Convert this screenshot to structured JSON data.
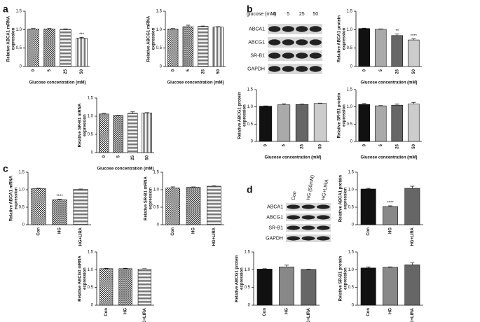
{
  "panels": [
    "a",
    "b",
    "c",
    "d"
  ],
  "blots": [
    {
      "header": "glucose (mM)",
      "lanes": [
        "0",
        "5",
        "25",
        "50"
      ],
      "rows": [
        "ABCA1",
        "ABCG1",
        "SR-B1",
        "GAPDH"
      ]
    },
    {
      "lanes": [
        "Con",
        "HG (50mM)",
        "HG+LIRA"
      ],
      "rows": [
        "ABCA1",
        "ABCG1",
        "SR-B1",
        "GAPDH"
      ]
    }
  ],
  "chart_data": [
    {
      "type": "bar",
      "ylabel": [
        "Relative ABCA1 mRNA",
        "expression"
      ],
      "xlabel": "Glucose concentration (mM)",
      "categories": [
        "0",
        "5",
        "25",
        "50"
      ],
      "values": [
        1.02,
        1.02,
        1.01,
        0.77
      ],
      "errors": [
        0.01,
        0.01,
        0.01,
        0.02
      ],
      "patterns": [
        "check",
        "cross",
        "hlines",
        "vlines"
      ],
      "ylim": [
        0,
        1.5
      ],
      "yticks": [
        0,
        0.5,
        {
          "value": 1,
          "label": "1.0"
        },
        1.5
      ],
      "annotations": [
        {
          "index": 3,
          "text": "***"
        }
      ]
    },
    {
      "type": "bar",
      "ylabel": [
        "Relative ABCG1 mRNA",
        "expression"
      ],
      "xlabel": "Glucose concentration (mM)",
      "categories": [
        "0",
        "5",
        "25",
        "50"
      ],
      "values": [
        1.02,
        1.08,
        1.09,
        1.07
      ],
      "errors": [
        0.01,
        0.04,
        0.01,
        0.01
      ],
      "patterns": [
        "check",
        "cross",
        "hlines",
        "vlines"
      ],
      "ylim": [
        0,
        1.5
      ],
      "yticks": [
        0,
        0.5,
        {
          "value": 1,
          "label": "1.0"
        },
        1.5
      ]
    },
    {
      "type": "bar",
      "ylabel": [
        "Relative SR-B1 mRNA",
        "expression"
      ],
      "xlabel": "Glucose concentration (mM)",
      "categories": [
        "0",
        "5",
        "25",
        "50"
      ],
      "values": [
        1.06,
        1.02,
        1.08,
        1.09
      ],
      "errors": [
        0.02,
        0.01,
        0.04,
        0.01
      ],
      "patterns": [
        "check",
        "cross",
        "hlines",
        "vlines"
      ],
      "ylim": [
        0,
        1.5
      ],
      "yticks": [
        0,
        0.5,
        {
          "value": 1,
          "label": "1.0"
        },
        1.5
      ]
    },
    {
      "type": "bar",
      "ylabel": [
        "Relative ABCA1 protein",
        "expression"
      ],
      "xlabel": "Glucose concentration (mM)",
      "categories": [
        "0",
        "5",
        "25",
        "50"
      ],
      "values": [
        1.03,
        1.01,
        0.84,
        0.72
      ],
      "errors": [
        0.01,
        0.01,
        0.04,
        0.03
      ],
      "colors": [
        "#111111",
        "#aaaaaa",
        "#666666",
        "#cccccc"
      ],
      "ylim": [
        0,
        1.5
      ],
      "yticks": [
        0,
        0.5,
        {
          "value": 1,
          "label": "1.0"
        },
        1.5
      ],
      "annotations": [
        {
          "index": 2,
          "text": "**"
        },
        {
          "index": 3,
          "text": "****"
        }
      ]
    },
    {
      "type": "bar",
      "ylabel": [
        "Relative ABCG1 protein",
        "expression"
      ],
      "xlabel": "Glucose concentration (mM)",
      "categories": [
        "0",
        "5",
        "25",
        "50"
      ],
      "values": [
        1.02,
        1.06,
        1.07,
        1.1
      ],
      "errors": [
        0.01,
        0.03,
        0.01,
        0.01
      ],
      "colors": [
        "#111111",
        "#aaaaaa",
        "#666666",
        "#cccccc"
      ],
      "ylim": [
        0,
        1.5
      ],
      "yticks": [
        0,
        0.5,
        {
          "value": 1,
          "label": "1.0"
        },
        1.5
      ]
    },
    {
      "type": "bar",
      "ylabel": [
        "Relative SR-B1 protein",
        "expression"
      ],
      "xlabel": "Glucose concentration (mM)",
      "categories": [
        "0",
        "5",
        "25",
        "50"
      ],
      "values": [
        1.07,
        1.03,
        1.05,
        1.08
      ],
      "errors": [
        0.03,
        0.01,
        0.03,
        0.05
      ],
      "colors": [
        "#111111",
        "#aaaaaa",
        "#666666",
        "#cccccc"
      ],
      "ylim": [
        0,
        1.5
      ],
      "yticks": [
        0,
        0.5,
        {
          "value": 1,
          "label": "1.0"
        },
        1.5
      ]
    },
    {
      "type": "bar",
      "ylabel": [
        "Relative ABCA1 mRNA",
        "expression"
      ],
      "categories": [
        "Con",
        "HG",
        "HG+LIRA"
      ],
      "values": [
        1.03,
        0.71,
        1.01
      ],
      "errors": [
        0.01,
        0.02,
        0.01
      ],
      "patterns": [
        "check",
        "cross",
        "hlines"
      ],
      "ylim": [
        0,
        1.5
      ],
      "yticks": [
        0,
        0.5,
        {
          "value": 1,
          "label": "1.0"
        },
        1.5
      ],
      "annotations": [
        {
          "index": 1,
          "text": "****"
        }
      ]
    },
    {
      "type": "bar",
      "ylabel": [
        "Relative SR-B1 mRNA",
        "expression"
      ],
      "categories": [
        "Con",
        "HG",
        "HG+LIRA"
      ],
      "values": [
        1.05,
        1.07,
        1.1
      ],
      "errors": [
        0.03,
        0.01,
        0.01
      ],
      "patterns": [
        "check",
        "cross",
        "hlines"
      ],
      "ylim": [
        0,
        1.5
      ],
      "yticks": [
        0,
        0.5,
        {
          "value": 1,
          "label": "1.0"
        },
        1.5
      ]
    },
    {
      "type": "bar",
      "ylabel": [
        "Relative ABCG1 mRNA",
        "expression"
      ],
      "categories": [
        "Con",
        "HG",
        "HG+LIRA"
      ],
      "values": [
        1.03,
        1.03,
        1.02
      ],
      "errors": [
        0.01,
        0.01,
        0.01
      ],
      "patterns": [
        "check",
        "cross",
        "hlines"
      ],
      "ylim": [
        0,
        1.5
      ],
      "yticks": [
        0,
        0.5,
        {
          "value": 1,
          "label": "1.0"
        },
        1.5
      ]
    },
    {
      "type": "bar",
      "ylabel": [
        "Relative ABCA1 protein",
        "expression"
      ],
      "categories": [
        "Con",
        "HG",
        "HG+LIRA"
      ],
      "values": [
        1.02,
        0.52,
        1.04
      ],
      "errors": [
        0.02,
        0.02,
        0.06
      ],
      "colors": [
        "#111111",
        "#888888",
        "#666666"
      ],
      "ylim": [
        0,
        1.5
      ],
      "yticks": [
        0,
        0.5,
        {
          "value": 1,
          "label": "1.0"
        },
        1.5
      ],
      "annotations": [
        {
          "index": 1,
          "text": "****"
        }
      ]
    },
    {
      "type": "bar",
      "ylabel": [
        "Relative ABCG1 protein",
        "expression"
      ],
      "categories": [
        "Con",
        "HG",
        "HG+LIRA"
      ],
      "values": [
        1.02,
        1.08,
        1.01
      ],
      "errors": [
        0.01,
        0.05,
        0.01
      ],
      "colors": [
        "#111111",
        "#888888",
        "#666666"
      ],
      "ylim": [
        0,
        1.5
      ],
      "yticks": [
        0,
        0.5,
        {
          "value": 1,
          "label": "1.0"
        },
        1.5
      ]
    },
    {
      "type": "bar",
      "ylabel": [
        "Relative SR-B1 protein",
        "expression"
      ],
      "categories": [
        "Con",
        "HG",
        "HG+LIRA"
      ],
      "values": [
        1.05,
        1.07,
        1.14
      ],
      "errors": [
        0.03,
        0.01,
        0.06
      ],
      "colors": [
        "#111111",
        "#888888",
        "#666666"
      ],
      "ylim": [
        0,
        1.5
      ],
      "yticks": [
        0,
        0.5,
        {
          "value": 1,
          "label": "1.0"
        },
        1.5
      ]
    }
  ]
}
